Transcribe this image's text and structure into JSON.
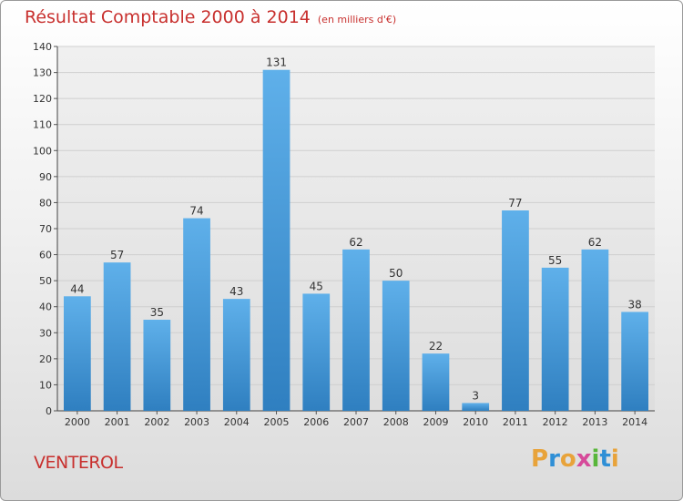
{
  "title": "Résultat Comptable 2000 à 2014",
  "subtitle": "(en milliers d'€)",
  "place": "VENTEROL",
  "logo": {
    "letters": [
      "P",
      "r",
      "o",
      "x",
      "i",
      "t",
      "i"
    ],
    "colors": [
      "#e8a33a",
      "#2f8fd6",
      "#e8a33a",
      "#d64a9a",
      "#58b63a",
      "#2f8fd6",
      "#e8a33a"
    ]
  },
  "chart_data": {
    "type": "bar",
    "categories": [
      "2000",
      "2001",
      "2002",
      "2003",
      "2004",
      "2005",
      "2006",
      "2007",
      "2008",
      "2009",
      "2010",
      "2011",
      "2012",
      "2013",
      "2014"
    ],
    "values": [
      44,
      57,
      35,
      74,
      43,
      131,
      45,
      62,
      50,
      22,
      3,
      77,
      55,
      62,
      38
    ],
    "ylim": [
      0,
      140
    ],
    "yticks": [
      0,
      10,
      20,
      30,
      40,
      50,
      60,
      70,
      80,
      90,
      100,
      110,
      120,
      130,
      140
    ],
    "grid": true,
    "bar_color": "#4a9fdc",
    "title_color": "#c8302e"
  }
}
